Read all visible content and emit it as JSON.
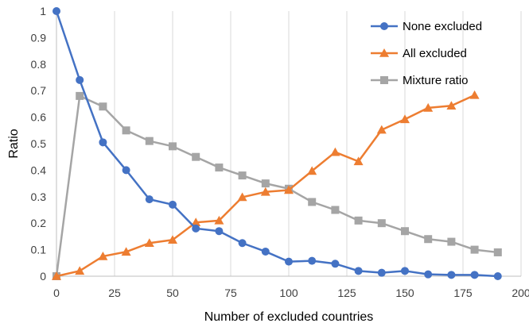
{
  "chart_data": {
    "type": "line",
    "title": "",
    "xlabel": "Number of excluded countries",
    "ylabel": "Ratio",
    "xlim": [
      0,
      200
    ],
    "ylim": [
      0,
      1
    ],
    "x_ticks": [
      0,
      25,
      50,
      75,
      100,
      125,
      150,
      175,
      200
    ],
    "y_ticks": [
      0,
      0.1,
      0.2,
      0.3,
      0.4,
      0.5,
      0.6,
      0.7,
      0.8,
      0.9,
      1
    ],
    "x_tick_labels": [
      "0",
      "25",
      "50",
      "75",
      "100",
      "125",
      "150",
      "175",
      "200"
    ],
    "y_tick_labels": [
      "0",
      "0.1",
      "0.2",
      "0.3",
      "0.4",
      "0.5",
      "0.6",
      "0.7",
      "0.8",
      "0.9",
      "1"
    ],
    "grid": "vertical",
    "legend_position": "top-right",
    "series": [
      {
        "name": "None excluded",
        "color": "#4472C4",
        "marker": "circle",
        "x": [
          0,
          10,
          20,
          30,
          40,
          50,
          60,
          70,
          80,
          90,
          100,
          110,
          120,
          130,
          140,
          150,
          160,
          170,
          180,
          190
        ],
        "y": [
          1.0,
          0.74,
          0.505,
          0.4,
          0.29,
          0.27,
          0.18,
          0.17,
          0.125,
          0.093,
          0.055,
          0.058,
          0.047,
          0.02,
          0.013,
          0.02,
          0.007,
          0.005,
          0.005,
          0.0
        ]
      },
      {
        "name": "All excluded",
        "color": "#ED7D31",
        "marker": "triangle",
        "x": [
          0,
          10,
          20,
          30,
          40,
          50,
          60,
          70,
          80,
          90,
          100,
          110,
          120,
          130,
          140,
          150,
          160,
          170,
          180
        ],
        "y": [
          0.0,
          0.02,
          0.075,
          0.092,
          0.125,
          0.137,
          0.203,
          0.21,
          0.298,
          0.318,
          0.325,
          0.397,
          0.468,
          0.433,
          0.552,
          0.592,
          0.635,
          0.643,
          0.683
        ]
      },
      {
        "name": "Mixture ratio",
        "color": "#A5A5A5",
        "marker": "square",
        "x": [
          0,
          10,
          20,
          30,
          40,
          50,
          60,
          70,
          80,
          90,
          100,
          110,
          120,
          130,
          140,
          150,
          160,
          170,
          180,
          190
        ],
        "y": [
          0.0,
          0.68,
          0.64,
          0.55,
          0.51,
          0.49,
          0.45,
          0.41,
          0.38,
          0.35,
          0.33,
          0.28,
          0.25,
          0.21,
          0.2,
          0.17,
          0.14,
          0.13,
          0.1,
          0.09
        ]
      }
    ]
  }
}
